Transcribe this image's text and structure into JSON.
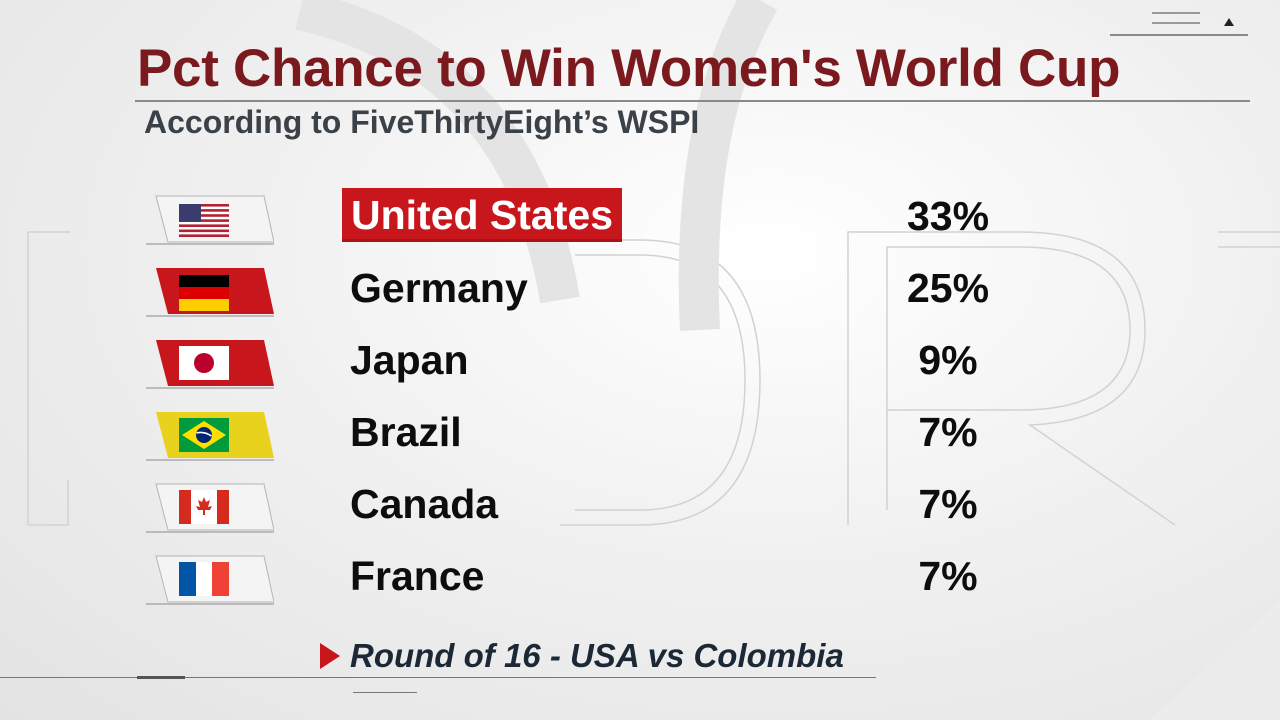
{
  "header": {
    "title": "Pct Chance to Win Women's World Cup",
    "subtitle": "According to FiveThirtyEight’s WSPI"
  },
  "rows": [
    {
      "country": "United States",
      "pct": "33%",
      "flag": "usa-flag-icon",
      "highlighted": true
    },
    {
      "country": "Germany",
      "pct": "25%",
      "flag": "germany-flag-icon",
      "highlighted": false
    },
    {
      "country": "Japan",
      "pct": "9%",
      "flag": "japan-flag-icon",
      "highlighted": false
    },
    {
      "country": "Brazil",
      "pct": "7%",
      "flag": "brazil-flag-icon",
      "highlighted": false
    },
    {
      "country": "Canada",
      "pct": "7%",
      "flag": "canada-flag-icon",
      "highlighted": false
    },
    {
      "country": "France",
      "pct": "7%",
      "flag": "france-flag-icon",
      "highlighted": false
    }
  ],
  "footer": {
    "next_label": "Round of 16 - USA vs Colombia"
  },
  "colors": {
    "title": "#7a1a1e",
    "subtitle": "#3b4148",
    "highlight": "#c8161d",
    "flag_panel_red": "#c8161d",
    "flag_panel_yellow": "#e8d21e",
    "flag_panel_white": "#f4f4f4"
  }
}
